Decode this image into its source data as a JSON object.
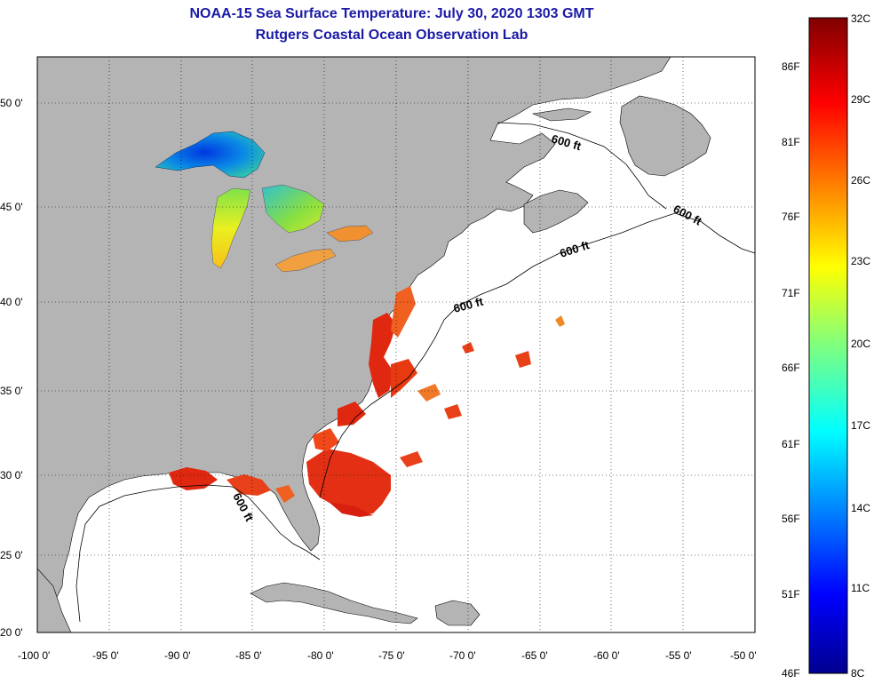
{
  "header": {
    "title_line1": "NOAA-15 Sea Surface Temperature:  July 30, 2020 1303 GMT",
    "title_line2": "Rutgers Coastal Ocean Observation Lab"
  },
  "axes": {
    "lat_labels": [
      "50 0'",
      "45 0'",
      "40 0'",
      "35 0'",
      "30 0'",
      "25 0'",
      "20 0'"
    ],
    "lon_labels": [
      "-100 0'",
      "-95 0'",
      "-90 0'",
      "-85 0'",
      "-80 0'",
      "-75 0'",
      "-70 0'",
      "-65 0'",
      "-60 0'",
      "-55 0'",
      "-50 0'"
    ]
  },
  "contour_labels": [
    "600 ft",
    "600 ft",
    "600 ft",
    "600 ft",
    "600 ft"
  ],
  "colorbar": {
    "celsius_labels": [
      "32C",
      "29C",
      "26C",
      "23C",
      "20C",
      "17C",
      "14C",
      "11C",
      "8C"
    ],
    "fahrenheit_labels": [
      "86F",
      "81F",
      "76F",
      "71F",
      "66F",
      "61F",
      "56F",
      "51F",
      "46F"
    ]
  },
  "colors": {
    "land": "#b4b4b4",
    "ocean": "#ffffff",
    "title": "#1a1aa6"
  }
}
